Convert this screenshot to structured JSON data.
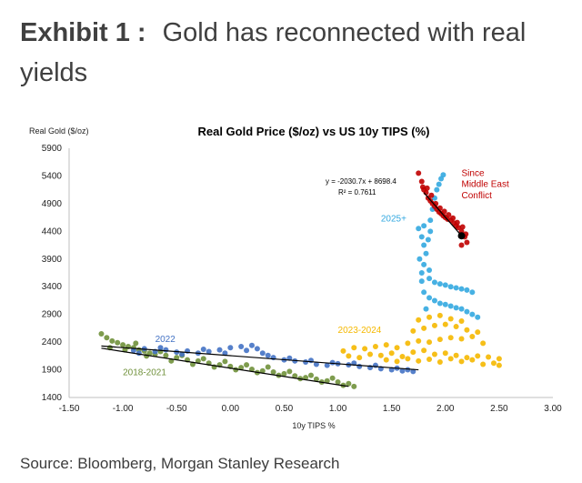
{
  "heading": {
    "label": "Exhibit 1 :",
    "title": "Gold has reconnected with real yields"
  },
  "source": "Source: Bloomberg, Morgan Stanley Research",
  "colors": {
    "c2022": "#4472c4",
    "c2018": "#70913b",
    "c2023": "#f5b800",
    "c2025": "#33a8e0",
    "cConflict": "#c00000",
    "trend": "#000000"
  },
  "chart_data": {
    "type": "scatter",
    "title": "Real Gold Price ($/oz) vs US 10y TIPS (%)",
    "xlabel": "10y TIPS %",
    "ylabel": "Real Gold ($/oz)",
    "xlim": [
      -1.5,
      3.0
    ],
    "ylim": [
      1400,
      5900
    ],
    "x_ticks": [
      "-1.50",
      "-1.00",
      "-0.50",
      "0.00",
      "0.50",
      "1.00",
      "1.50",
      "2.00",
      "2.50",
      "3.00"
    ],
    "y_ticks": [
      "1400",
      "1900",
      "2400",
      "2900",
      "3400",
      "3900",
      "4400",
      "4900",
      "5400",
      "5900"
    ],
    "grid": false,
    "regression": {
      "equation": "y = -2030.7x + 8698.4",
      "r2": "R² = 0.7611"
    },
    "series": [
      {
        "name": "2018-2021",
        "color_key": "c2018",
        "points": [
          [
            -1.15,
            2480
          ],
          [
            -1.1,
            2420
          ],
          [
            -1.05,
            2390
          ],
          [
            -1.0,
            2350
          ],
          [
            -0.95,
            2320
          ],
          [
            -0.9,
            2300
          ],
          [
            -0.85,
            2260
          ],
          [
            -0.8,
            2240
          ],
          [
            -0.75,
            2200
          ],
          [
            -0.7,
            2180
          ],
          [
            -0.6,
            2160
          ],
          [
            -0.5,
            2120
          ],
          [
            -0.4,
            2080
          ],
          [
            -0.3,
            2060
          ],
          [
            -0.2,
            2020
          ],
          [
            -0.1,
            1990
          ],
          [
            0.0,
            1960
          ],
          [
            0.1,
            1940
          ],
          [
            0.2,
            1910
          ],
          [
            0.3,
            1880
          ],
          [
            0.4,
            1860
          ],
          [
            0.5,
            1830
          ],
          [
            0.6,
            1790
          ],
          [
            0.7,
            1760
          ],
          [
            0.8,
            1730
          ],
          [
            0.9,
            1700
          ],
          [
            1.0,
            1680
          ],
          [
            1.1,
            1650
          ],
          [
            -1.2,
            2550
          ],
          [
            -1.12,
            2300
          ],
          [
            -0.98,
            2260
          ],
          [
            -0.88,
            2380
          ],
          [
            -0.78,
            2150
          ],
          [
            -0.65,
            2230
          ],
          [
            -0.55,
            2060
          ],
          [
            -0.45,
            2160
          ],
          [
            -0.35,
            2000
          ],
          [
            -0.25,
            2100
          ],
          [
            -0.15,
            1950
          ],
          [
            -0.05,
            2050
          ],
          [
            0.05,
            1900
          ],
          [
            0.15,
            1990
          ],
          [
            0.25,
            1850
          ],
          [
            0.35,
            1950
          ],
          [
            0.45,
            1800
          ],
          [
            0.55,
            1870
          ],
          [
            0.65,
            1740
          ],
          [
            0.75,
            1800
          ],
          [
            0.85,
            1680
          ],
          [
            0.95,
            1750
          ],
          [
            1.05,
            1620
          ],
          [
            1.15,
            1600
          ]
        ]
      },
      {
        "name": "2022",
        "color_key": "c2022",
        "points": [
          [
            -0.9,
            2250
          ],
          [
            -0.8,
            2280
          ],
          [
            -0.7,
            2230
          ],
          [
            -0.6,
            2260
          ],
          [
            -0.5,
            2220
          ],
          [
            -0.4,
            2240
          ],
          [
            -0.3,
            2200
          ],
          [
            -0.2,
            2230
          ],
          [
            -0.1,
            2260
          ],
          [
            0.0,
            2300
          ],
          [
            0.1,
            2320
          ],
          [
            0.2,
            2340
          ],
          [
            0.25,
            2280
          ],
          [
            0.3,
            2200
          ],
          [
            0.4,
            2120
          ],
          [
            0.5,
            2080
          ],
          [
            0.6,
            2060
          ],
          [
            0.7,
            2040
          ],
          [
            0.8,
            2000
          ],
          [
            0.9,
            1980
          ],
          [
            1.0,
            2010
          ],
          [
            1.1,
            1990
          ],
          [
            1.2,
            1960
          ],
          [
            1.3,
            1940
          ],
          [
            1.4,
            1920
          ],
          [
            1.5,
            1900
          ],
          [
            1.6,
            1880
          ],
          [
            1.7,
            1870
          ],
          [
            -0.85,
            2200
          ],
          [
            -0.65,
            2300
          ],
          [
            -0.45,
            2180
          ],
          [
            -0.25,
            2270
          ],
          [
            -0.05,
            2200
          ],
          [
            0.15,
            2250
          ],
          [
            0.35,
            2160
          ],
          [
            0.55,
            2110
          ],
          [
            0.75,
            2070
          ],
          [
            0.95,
            2030
          ],
          [
            1.15,
            2020
          ],
          [
            1.35,
            1980
          ],
          [
            1.55,
            1930
          ],
          [
            1.65,
            1900
          ]
        ]
      },
      {
        "name": "2023-2024",
        "color_key": "c2023",
        "points": [
          [
            1.05,
            2240
          ],
          [
            1.15,
            2300
          ],
          [
            1.25,
            2280
          ],
          [
            1.35,
            2320
          ],
          [
            1.45,
            2350
          ],
          [
            1.55,
            2300
          ],
          [
            1.65,
            2380
          ],
          [
            1.75,
            2420
          ],
          [
            1.85,
            2400
          ],
          [
            1.95,
            2450
          ],
          [
            2.05,
            2480
          ],
          [
            2.15,
            2460
          ],
          [
            2.25,
            2500
          ],
          [
            2.35,
            2380
          ],
          [
            1.1,
            2150
          ],
          [
            1.2,
            2120
          ],
          [
            1.3,
            2180
          ],
          [
            1.4,
            2160
          ],
          [
            1.5,
            2200
          ],
          [
            1.6,
            2140
          ],
          [
            1.7,
            2220
          ],
          [
            1.8,
            2250
          ],
          [
            1.9,
            2180
          ],
          [
            2.0,
            2200
          ],
          [
            2.1,
            2160
          ],
          [
            2.2,
            2120
          ],
          [
            2.3,
            2150
          ],
          [
            2.4,
            2130
          ],
          [
            2.5,
            2100
          ],
          [
            1.45,
            2080
          ],
          [
            1.55,
            2050
          ],
          [
            1.65,
            2100
          ],
          [
            1.75,
            2060
          ],
          [
            1.85,
            2090
          ],
          [
            1.95,
            2040
          ],
          [
            2.05,
            2100
          ],
          [
            2.15,
            2050
          ],
          [
            2.25,
            2080
          ],
          [
            2.35,
            2000
          ],
          [
            2.45,
            2020
          ],
          [
            2.5,
            1980
          ],
          [
            1.7,
            2600
          ],
          [
            1.8,
            2650
          ],
          [
            1.9,
            2700
          ],
          [
            2.0,
            2720
          ],
          [
            2.1,
            2680
          ],
          [
            2.2,
            2620
          ],
          [
            2.3,
            2580
          ],
          [
            1.75,
            2800
          ],
          [
            1.85,
            2850
          ],
          [
            1.95,
            2880
          ],
          [
            2.05,
            2820
          ],
          [
            2.15,
            2780
          ]
        ]
      },
      {
        "name": "2025+",
        "color_key": "c2025",
        "points": [
          [
            1.75,
            4450
          ],
          [
            1.78,
            4300
          ],
          [
            1.8,
            4150
          ],
          [
            1.82,
            4000
          ],
          [
            1.76,
            3900
          ],
          [
            1.8,
            3800
          ],
          [
            1.85,
            3700
          ],
          [
            1.78,
            3650
          ],
          [
            1.85,
            3550
          ],
          [
            1.9,
            3480
          ],
          [
            1.95,
            3450
          ],
          [
            2.0,
            3430
          ],
          [
            2.05,
            3400
          ],
          [
            2.1,
            3380
          ],
          [
            2.15,
            3360
          ],
          [
            2.2,
            3340
          ],
          [
            2.25,
            3300
          ],
          [
            1.85,
            3200
          ],
          [
            1.9,
            3150
          ],
          [
            1.95,
            3100
          ],
          [
            2.0,
            3080
          ],
          [
            2.05,
            3050
          ],
          [
            2.1,
            3020
          ],
          [
            2.15,
            3000
          ],
          [
            2.2,
            2950
          ],
          [
            2.25,
            2900
          ],
          [
            2.3,
            2850
          ],
          [
            1.8,
            3300
          ],
          [
            1.82,
            3000
          ],
          [
            1.78,
            3500
          ],
          [
            1.84,
            4250
          ],
          [
            1.86,
            4600
          ],
          [
            1.88,
            4800
          ],
          [
            1.9,
            5000
          ],
          [
            1.92,
            5150
          ],
          [
            1.94,
            5250
          ],
          [
            1.96,
            5350
          ],
          [
            1.98,
            5420
          ],
          [
            1.86,
            4400
          ],
          [
            1.8,
            4500
          ]
        ]
      },
      {
        "name": "Since Middle East Conflict",
        "color_key": "cConflict",
        "points": [
          [
            1.75,
            5450
          ],
          [
            1.78,
            5300
          ],
          [
            1.8,
            5150
          ],
          [
            1.82,
            5100
          ],
          [
            1.84,
            5000
          ],
          [
            1.86,
            4950
          ],
          [
            1.88,
            4900
          ],
          [
            1.9,
            4850
          ],
          [
            1.92,
            4800
          ],
          [
            1.94,
            4750
          ],
          [
            1.96,
            4720
          ],
          [
            1.98,
            4680
          ],
          [
            2.0,
            4650
          ],
          [
            2.02,
            4620
          ],
          [
            2.05,
            4600
          ],
          [
            2.08,
            4550
          ],
          [
            2.1,
            4500
          ],
          [
            2.12,
            4470
          ],
          [
            2.15,
            4400
          ],
          [
            2.18,
            4300
          ],
          [
            2.2,
            4200
          ],
          [
            2.15,
            4150
          ],
          [
            1.79,
            5200
          ],
          [
            1.83,
            5180
          ],
          [
            1.87,
            5050
          ],
          [
            1.91,
            4900
          ],
          [
            1.95,
            4820
          ],
          [
            1.99,
            4760
          ],
          [
            2.03,
            4700
          ],
          [
            2.07,
            4640
          ],
          [
            2.11,
            4560
          ],
          [
            2.16,
            4480
          ],
          [
            2.19,
            4350
          ]
        ]
      }
    ],
    "annotations": [
      {
        "text": "2022",
        "x": -0.7,
        "y": 2400,
        "color_key": "c2022"
      },
      {
        "text": "2018-2021",
        "x": -1.0,
        "y": 1800,
        "color_key": "c2018"
      },
      {
        "text": "2023-2024",
        "x": 1.0,
        "y": 2570,
        "color_key": "c2023"
      },
      {
        "text": "2025+",
        "x": 1.4,
        "y": 4580,
        "color_key": "c2025"
      },
      {
        "text": "Since",
        "x": 2.15,
        "y": 5400,
        "color_key": "cConflict"
      },
      {
        "text": "Middle East",
        "x": 2.15,
        "y": 5200,
        "color_key": "cConflict"
      },
      {
        "text": "Conflict",
        "x": 2.15,
        "y": 5000,
        "color_key": "cConflict"
      }
    ],
    "trendlines": [
      {
        "from": [
          -1.2,
          2330
        ],
        "to": [
          1.75,
          1900
        ]
      },
      {
        "from": [
          -1.2,
          2290
        ],
        "to": [
          1.1,
          1600
        ]
      },
      {
        "from": [
          1.8,
          5100
        ],
        "to": [
          2.15,
          4320
        ]
      }
    ]
  }
}
